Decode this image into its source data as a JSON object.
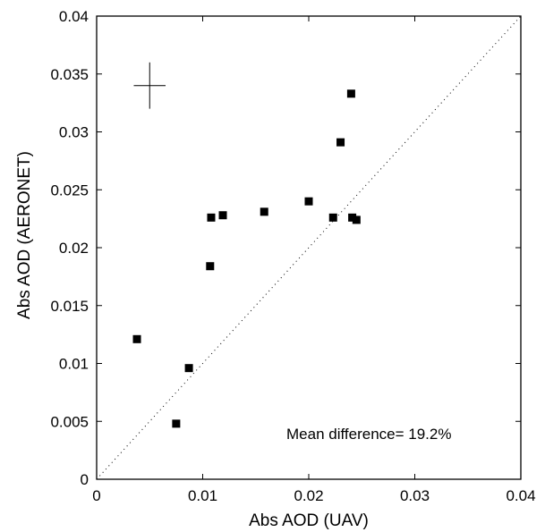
{
  "chart_data": {
    "type": "scatter",
    "xlabel": "Abs AOD (UAV)",
    "ylabel": "Abs AOD (AERONET)",
    "xlim": [
      0,
      0.04
    ],
    "ylim": [
      0,
      0.04
    ],
    "xticks": [
      "0",
      "0.01",
      "0.02",
      "0.03",
      "0.04"
    ],
    "yticks": [
      "0",
      "0.005",
      "0.01",
      "0.015",
      "0.02",
      "0.025",
      "0.03",
      "0.035",
      "0.04"
    ],
    "annotation": "Mean difference= 19.2%",
    "one_to_one_line": true,
    "grid": false,
    "error_cross": {
      "x": 0.005,
      "y": 0.034,
      "x_half_width": 0.0015,
      "y_half_height": 0.002
    },
    "points": [
      {
        "x": 0.0038,
        "y": 0.0121
      },
      {
        "x": 0.0075,
        "y": 0.0048
      },
      {
        "x": 0.0087,
        "y": 0.0096
      },
      {
        "x": 0.0107,
        "y": 0.0184
      },
      {
        "x": 0.0108,
        "y": 0.0226
      },
      {
        "x": 0.0119,
        "y": 0.0228
      },
      {
        "x": 0.0158,
        "y": 0.0231
      },
      {
        "x": 0.02,
        "y": 0.024
      },
      {
        "x": 0.0223,
        "y": 0.0226
      },
      {
        "x": 0.023,
        "y": 0.0291
      },
      {
        "x": 0.024,
        "y": 0.0333
      },
      {
        "x": 0.0241,
        "y": 0.0226
      },
      {
        "x": 0.0245,
        "y": 0.0224
      }
    ]
  }
}
